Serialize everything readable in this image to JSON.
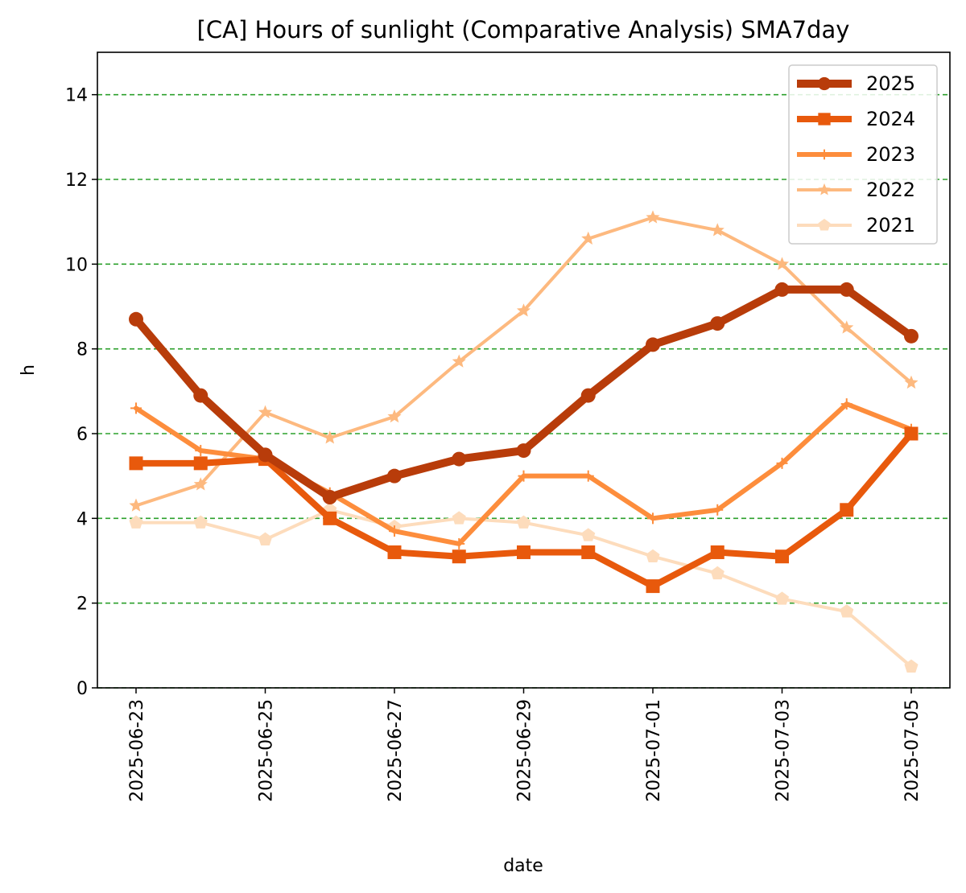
{
  "chart_data": {
    "type": "line",
    "title": "[CA] Hours of sunlight (Comparative Analysis) SMA7day",
    "xlabel": "date",
    "ylabel": "h",
    "ylim": [
      0,
      15
    ],
    "yticks": [
      0,
      2,
      4,
      6,
      8,
      10,
      12,
      14
    ],
    "x": [
      "2025-06-23",
      "2025-06-24",
      "2025-06-25",
      "2025-06-26",
      "2025-06-27",
      "2025-06-28",
      "2025-06-29",
      "2025-06-30",
      "2025-07-01",
      "2025-07-02",
      "2025-07-03",
      "2025-07-04",
      "2025-07-05"
    ],
    "xticks": [
      "2025-06-23",
      "2025-06-25",
      "2025-06-27",
      "2025-06-29",
      "2025-07-01",
      "2025-07-03",
      "2025-07-05"
    ],
    "grid": {
      "axis": "y",
      "style": "dashed",
      "color": "#2ca02c"
    },
    "legend_position": "top-right",
    "series": [
      {
        "name": "2025",
        "color": "#b83c0a",
        "marker": "circle",
        "values": [
          8.7,
          6.9,
          5.5,
          4.5,
          5.0,
          5.4,
          5.6,
          6.9,
          8.1,
          8.6,
          9.4,
          9.4,
          8.3
        ]
      },
      {
        "name": "2024",
        "color": "#e8590c",
        "marker": "square",
        "values": [
          5.3,
          5.3,
          5.4,
          4.0,
          3.2,
          3.1,
          3.2,
          3.2,
          2.4,
          3.2,
          3.1,
          4.2,
          6.0
        ]
      },
      {
        "name": "2023",
        "color": "#fd8d3c",
        "marker": "plus",
        "values": [
          6.6,
          5.6,
          5.4,
          4.6,
          3.7,
          3.4,
          5.0,
          5.0,
          4.0,
          4.2,
          5.3,
          6.7,
          6.1
        ]
      },
      {
        "name": "2022",
        "color": "#fdb97f",
        "marker": "star",
        "values": [
          4.3,
          4.8,
          6.5,
          5.9,
          6.4,
          7.7,
          8.9,
          10.6,
          11.1,
          10.8,
          10.0,
          8.5,
          7.2
        ]
      },
      {
        "name": "2021",
        "color": "#fddcbc",
        "marker": "pentagon",
        "values": [
          3.9,
          3.9,
          3.5,
          4.2,
          3.8,
          4.0,
          3.9,
          3.6,
          3.1,
          2.7,
          2.1,
          1.8,
          0.5
        ]
      }
    ]
  }
}
